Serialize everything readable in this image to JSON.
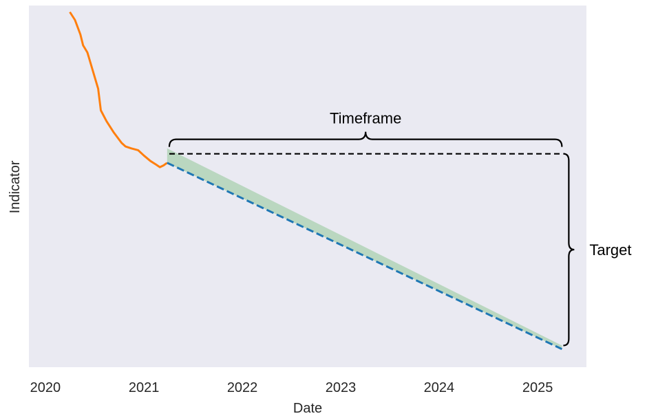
{
  "chart_data": {
    "type": "line",
    "xlabel": "Date",
    "ylabel": "Indicator",
    "x_ticks": [
      "2020",
      "2021",
      "2022",
      "2023",
      "2024",
      "2025"
    ],
    "xlim": [
      "2019-11-01",
      "2025-07-01"
    ],
    "ylim": [
      0,
      100
    ],
    "grid": false,
    "series": [
      {
        "role": "historical",
        "style": "solid",
        "color": "#ff7f0e",
        "points": [
          [
            "2020-04-01",
            98.2
          ],
          [
            "2020-04-20",
            96.0
          ],
          [
            "2020-05-10",
            92.0
          ],
          [
            "2020-05-20",
            89.0
          ],
          [
            "2020-06-05",
            87.0
          ],
          [
            "2020-06-25",
            82.0
          ],
          [
            "2020-07-15",
            77.0
          ],
          [
            "2020-07-25",
            71.0
          ],
          [
            "2020-08-15",
            68.0
          ],
          [
            "2020-09-10",
            65.0
          ],
          [
            "2020-10-10",
            62.0
          ],
          [
            "2020-10-25",
            61.0
          ],
          [
            "2020-11-15",
            60.5
          ],
          [
            "2020-12-10",
            60.0
          ],
          [
            "2021-01-01",
            58.5
          ],
          [
            "2021-01-25",
            57.0
          ],
          [
            "2021-02-15",
            56.0
          ],
          [
            "2021-03-01",
            55.3
          ],
          [
            "2021-03-15",
            55.8
          ],
          [
            "2021-03-28",
            56.5
          ]
        ]
      },
      {
        "role": "projection",
        "style": "dashed",
        "color": "#1f77b4",
        "points": [
          [
            "2021-03-28",
            56.5
          ],
          [
            "2025-04-01",
            5.0
          ]
        ]
      },
      {
        "role": "target level",
        "style": "dashed",
        "color": "#000000",
        "points": [
          [
            "2021-04-05",
            59.0
          ],
          [
            "2025-04-01",
            59.0
          ]
        ]
      }
    ],
    "band": {
      "color": "#2ca02c",
      "opacity": 0.25,
      "upper": [
        [
          "2021-03-28",
          60.5
        ],
        [
          "2025-04-01",
          6.0
        ]
      ],
      "lower": [
        [
          "2021-03-28",
          56.5
        ],
        [
          "2025-04-01",
          5.0
        ]
      ]
    },
    "annotations": [
      {
        "text": "Timeframe",
        "brace": "horizontal",
        "from": "2021-04-05",
        "to": "2025-04-01"
      },
      {
        "text": "Target",
        "brace": "vertical",
        "from": 59.0,
        "to": 6.0
      }
    ],
    "colors": {
      "background": "#eaeaf2",
      "historical": "#ff7f0e",
      "projection": "#1f77b4",
      "band": "#2ca02c",
      "annotation": "#000000"
    }
  }
}
